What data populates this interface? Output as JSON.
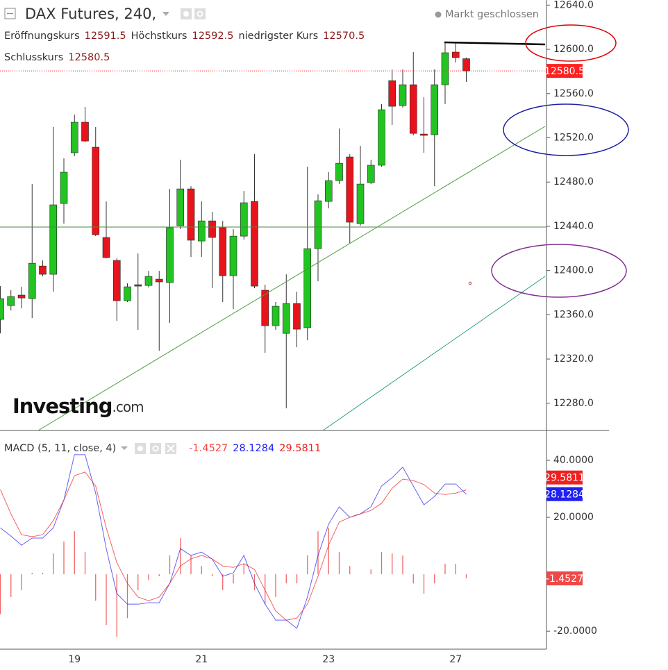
{
  "chart_data": [
    {
      "type": "candlestick",
      "title": "DAX Futures, 240,",
      "status": "Markt geschlossen",
      "ohlc_labels": [
        "Eröffnungskurs",
        "Höchstkurs",
        "niedrigster Kurs",
        "Schlusskurs"
      ],
      "open": [
        12355.8,
        12368.3,
        12377.8,
        12374.6,
        12404.1,
        12396.6,
        12460.6,
        12506.5,
        12534.1,
        12511.5,
        12429.9,
        12409.1,
        12372.7,
        12387.2,
        12386.5,
        12392.2,
        12389.1,
        12440.5,
        12473.8,
        12426.7,
        12444.9,
        12438.7,
        12395.3,
        12431.1,
        12462.5,
        12382.2,
        12350.1,
        12343.2,
        12370.2,
        12348.3,
        12419.8,
        12462.5,
        12481.3,
        12502.7,
        12442.4,
        12479.5,
        12495.2,
        12571.7,
        12549.1,
        12568.0,
        12523.4,
        12522.8,
        12568.0,
        12597.5,
        12591.5
      ],
      "high": [
        12385.9,
        12382.2,
        12385.3,
        12478.2,
        12409.1,
        12529.7,
        12501.4,
        12541.0,
        12547.9,
        12529.7,
        12462.5,
        12411.0,
        12388.4,
        12415.4,
        12399.7,
        12399.7,
        12473.8,
        12500.2,
        12476.3,
        12462.5,
        12453.1,
        12444.9,
        12437.4,
        12471.9,
        12505.2,
        12387.2,
        12371.5,
        12396.6,
        12380.9,
        12493.9,
        12468.8,
        12488.9,
        12528.4,
        12505.2,
        12512.7,
        12500.2,
        12550.4,
        12581.8,
        12581.8,
        12597.5,
        12556.7,
        12581.8,
        12606.9,
        12606.9,
        12592.5
      ],
      "low": [
        12343.2,
        12363.9,
        12365.8,
        12357.0,
        12394.7,
        12380.9,
        12442.4,
        12503.3,
        12515.9,
        12431.1,
        12411.0,
        12354.5,
        12371.5,
        12346.4,
        12384.7,
        12327.5,
        12352.7,
        12437.4,
        12412.3,
        12412.3,
        12384.0,
        12371.5,
        12365.2,
        12428.0,
        12384.0,
        12325.7,
        12346.4,
        12275.4,
        12330.7,
        12336.9,
        12390.3,
        12456.2,
        12478.2,
        12424.8,
        12440.5,
        12478.2,
        12493.9,
        12531.6,
        12547.3,
        12522.2,
        12506.5,
        12476.3,
        12550.4,
        12588.1,
        12570.5
      ],
      "close": [
        12374.6,
        12376.5,
        12375.2,
        12406.6,
        12396.6,
        12459.4,
        12488.9,
        12534.1,
        12517.1,
        12432.4,
        12411.7,
        12372.7,
        12385.3,
        12385.9,
        12394.7,
        12389.7,
        12438.7,
        12473.8,
        12427.4,
        12444.9,
        12429.9,
        12395.3,
        12431.1,
        12461.3,
        12385.9,
        12350.1,
        12367.7,
        12370.2,
        12347.0,
        12419.8,
        12463.1,
        12481.3,
        12497.0,
        12443.7,
        12478.2,
        12495.2,
        12545.4,
        12548.5,
        12568.0,
        12524.0,
        12522.2,
        12568.0,
        12596.9,
        12592.5,
        12580.5
      ],
      "up_color": "#22c422",
      "down_color": "#e8141c",
      "last_price_color": "#ff2020",
      "ylim": [
        12255.4,
        12644.6
      ],
      "yticks": [
        {
          "value": 12280,
          "label": "12280.0"
        },
        {
          "value": 12320,
          "label": "12320.0"
        },
        {
          "value": 12360,
          "label": "12360.0"
        },
        {
          "value": 12400,
          "label": "12400.0"
        },
        {
          "value": 12440,
          "label": "12440.0"
        },
        {
          "value": 12480,
          "label": "12480.0"
        },
        {
          "value": 12520,
          "label": "12520.0"
        },
        {
          "value": 12560,
          "label": "12560.0"
        },
        {
          "value": 12600,
          "label": "12600.0"
        },
        {
          "value": 12640,
          "label": "12640.0"
        }
      ],
      "watermark": [
        "Investing",
        ".com"
      ]
    },
    {
      "type": "macd",
      "title": "MACD (5, 11, close, 4)",
      "categories": [
        null,
        null,
        null,
        null,
        null,
        null,
        null,
        "19",
        null,
        null,
        null,
        null,
        null,
        null,
        null,
        null,
        null,
        null,
        null,
        "21",
        null,
        null,
        null,
        null,
        null,
        null,
        null,
        null,
        null,
        null,
        null,
        "23",
        null,
        null,
        null,
        null,
        null,
        null,
        null,
        null,
        null,
        null,
        null,
        "27",
        null
      ],
      "series": [
        {
          "style": "bar",
          "color": "#f04848",
          "values": [
            -14,
            -8,
            -5.6,
            0.5,
            0.5,
            7.3,
            11.5,
            15.1,
            7.8,
            -9.3,
            -17.8,
            -22,
            -15.4,
            -5.6,
            -2,
            -0.7,
            6.6,
            12.7,
            6.6,
            2.9,
            -0.7,
            -5.6,
            -3.2,
            3.7,
            -5.6,
            -10.5,
            -8,
            -3.2,
            -3.2,
            6.6,
            15.1,
            16.3,
            7.8,
            2.9,
            0,
            1.7,
            7.8,
            7.3,
            6.6,
            -3.2,
            -6.8,
            -3.2,
            3.7,
            3.7,
            -1.4527
          ]
        },
        {
          "style": "line",
          "color": "#2020f0",
          "values": [
            16.3,
            13.4,
            10.2,
            12.7,
            12.7,
            16.3,
            26.1,
            42.0,
            42.0,
            28.5,
            9.0,
            -6.8,
            -10.5,
            -10.5,
            -10.0,
            -10.0,
            -3.2,
            9.0,
            6.6,
            7.8,
            5.4,
            -0.7,
            0.5,
            6.6,
            -3.2,
            -10.5,
            -16.1,
            -16.1,
            -19.0,
            -8.0,
            6.6,
            17.6,
            23.7,
            20.0,
            21.2,
            23.7,
            31.0,
            33.9,
            37.6,
            31.0,
            24.4,
            27.3,
            31.7,
            31.7,
            28.1284
          ]
        },
        {
          "style": "line",
          "color": "#f02020",
          "values": [
            29.8,
            21.2,
            13.9,
            13.2,
            13.9,
            18.8,
            26.1,
            34.6,
            35.9,
            31.0,
            16.3,
            4.1,
            -3.2,
            -8.0,
            -9.3,
            -8.0,
            -3.2,
            2.9,
            5.4,
            6.6,
            5.4,
            2.9,
            2.4,
            3.7,
            1.7,
            -5.6,
            -12.9,
            -16.1,
            -15.4,
            -10.5,
            -0.7,
            10.2,
            18.3,
            20.0,
            21.2,
            22.4,
            24.9,
            30.2,
            33.4,
            32.9,
            31.5,
            28.5,
            28.0,
            28.5,
            29.5811
          ]
        }
      ],
      "ylim": [
        -26.3,
        50
      ],
      "yticks": [
        {
          "value": -20,
          "label": "-20.0000"
        },
        {
          "value": 20,
          "label": "20.0000"
        },
        {
          "value": 40,
          "label": "40.0000"
        }
      ]
    }
  ]
}
